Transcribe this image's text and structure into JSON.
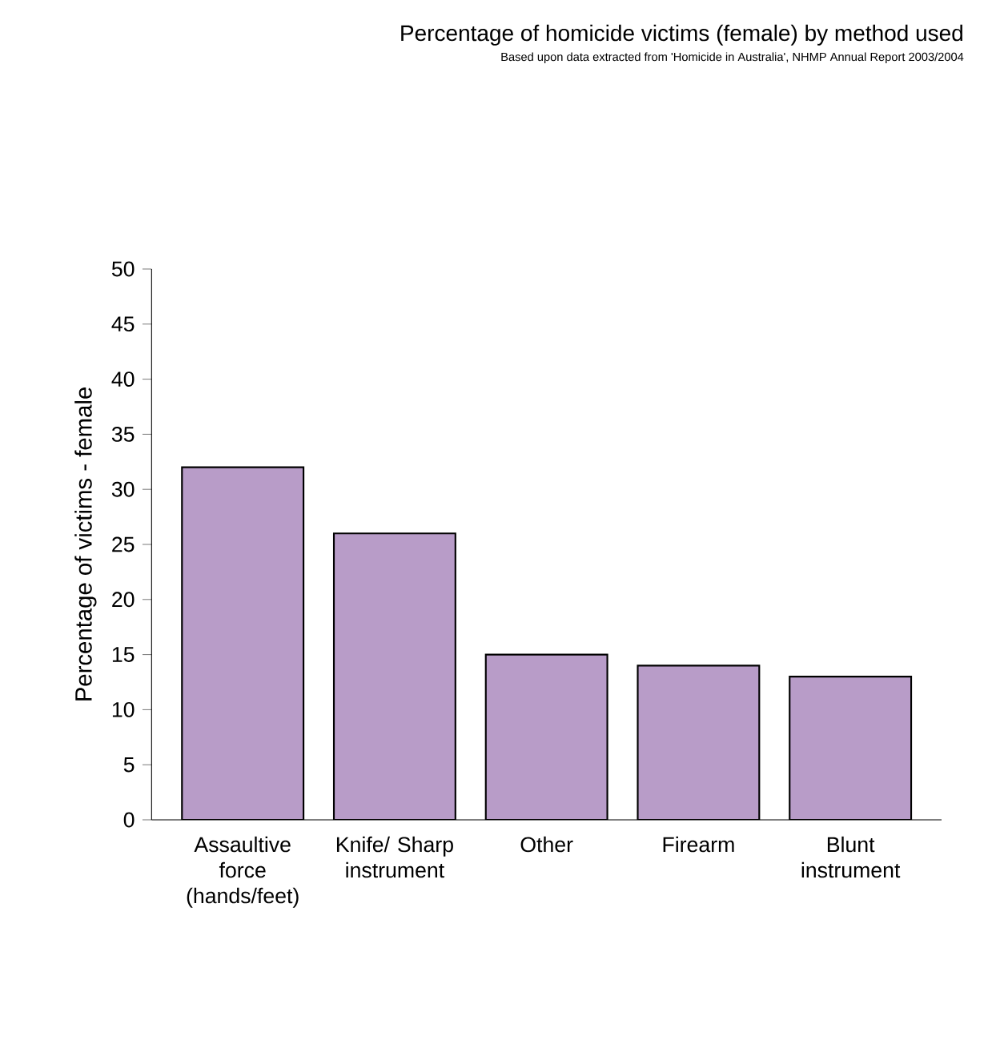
{
  "chart_data": {
    "type": "bar",
    "title": "Percentage of homicide victims (female) by method used",
    "subtitle": "Based upon data extracted from 'Homicide in Australia', NHMP Annual Report 2003/2004",
    "ylabel": "Percentage of victims - female",
    "categories": [
      "Assaultive force (hands/feet)",
      "Knife/ Sharp instrument",
      "Other",
      "Firearm",
      "Blunt instrument"
    ],
    "values": [
      32,
      26,
      15,
      14,
      13
    ],
    "color": "#b89cc8",
    "ylim": [
      0,
      50
    ],
    "yticks": [
      0,
      5,
      10,
      15,
      20,
      25,
      30,
      35,
      40,
      45,
      50
    ],
    "grid": false
  }
}
